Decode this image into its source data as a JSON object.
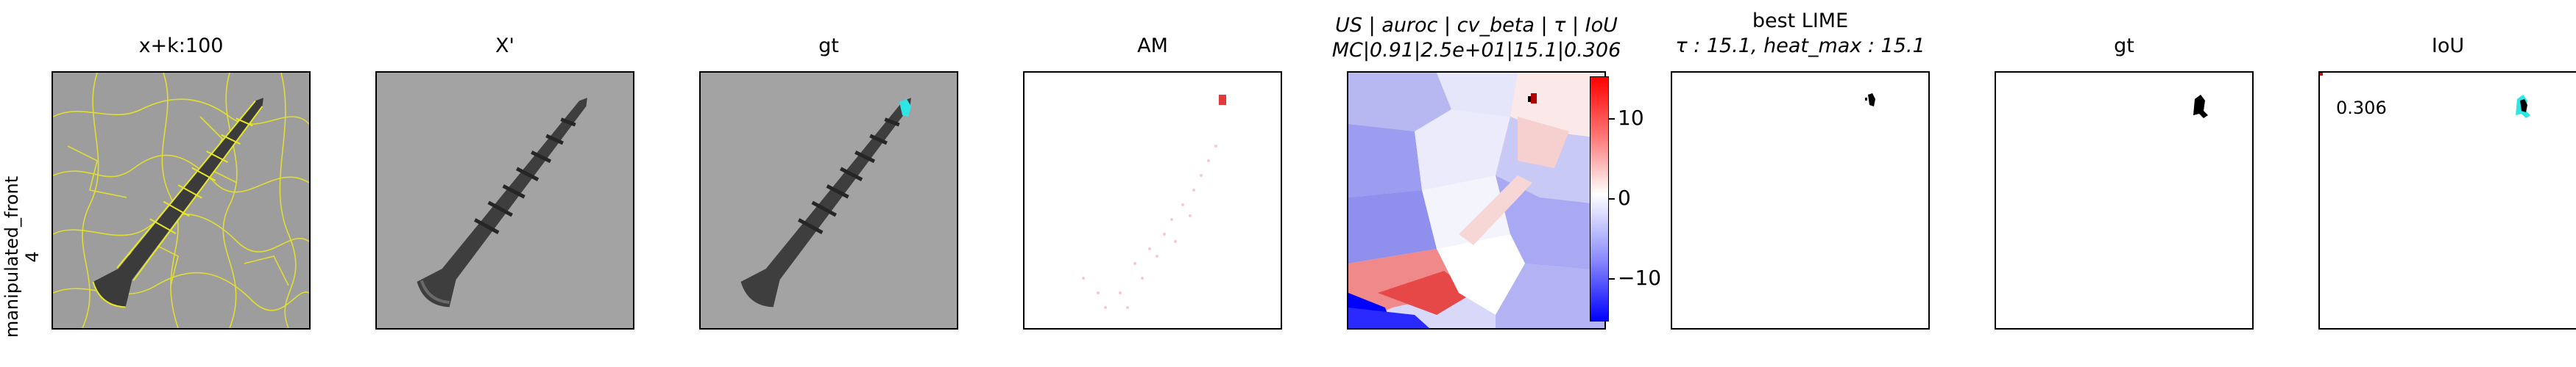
{
  "row_label": {
    "line1": "manipulated_front",
    "line2": "4"
  },
  "panels": [
    {
      "title": "x+k:100"
    },
    {
      "title": "X'"
    },
    {
      "title": "gt"
    },
    {
      "title": "AM"
    },
    {
      "title_line1": "US | auroc | cv_beta | τ | IoU",
      "title_line2": "MC|0.91|2.5e+01|15.1|0.306"
    },
    {
      "title_line1": "best LIME",
      "title_line2": "τ : 15.1, heat_max : 15.1"
    },
    {
      "title": "gt"
    },
    {
      "title": "IoU",
      "value": "0.306"
    }
  ],
  "colorbar": {
    "ticks": [
      "10",
      "0",
      "−10"
    ]
  },
  "colors": {
    "segment": "#e8e628",
    "gt_highlight": "#2ee6e6",
    "heat_pos": "#ff0000",
    "heat_neg": "#0000ff"
  }
}
